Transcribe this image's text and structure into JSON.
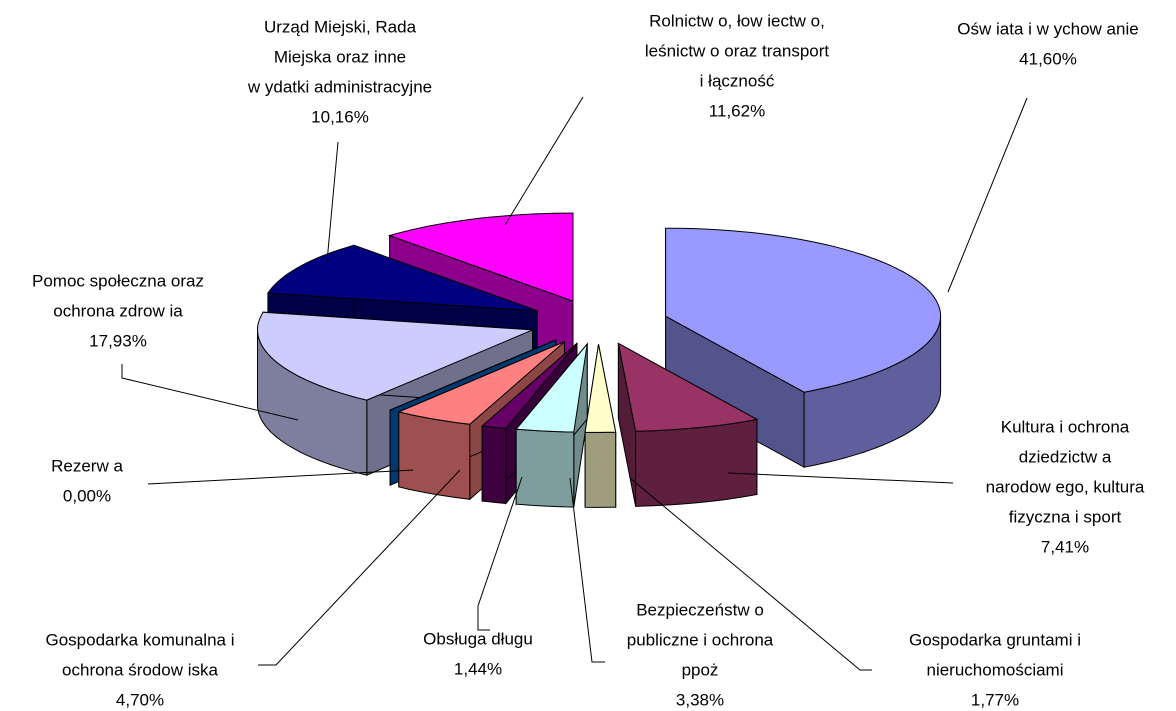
{
  "chart_data": {
    "type": "pie",
    "three_d": true,
    "exploded": true,
    "categories": [
      [
        "Ośw iata i w ychow anie"
      ],
      [
        "Kultura i ochrona",
        "dziedzictw a",
        "narodow ego, kultura",
        "fizyczna i sport"
      ],
      [
        "Gospodarka gruntami i",
        "nieruchomościami"
      ],
      [
        "Bezpieczeństw o",
        "publiczne i ochrona",
        "ppoż"
      ],
      [
        "Obsługa długu"
      ],
      [
        "Gospodarka komunalna i",
        "ochrona środow iska"
      ],
      [
        "Rezerw a"
      ],
      [
        "Pomoc społeczna oraz",
        "ochrona zdrow ia"
      ],
      [
        "Urząd Miejski, Rada",
        "Miejska oraz inne",
        "w ydatki administracyjne"
      ],
      [
        "Rolnictw o, łow iectw o,",
        "leśnictw o oraz transport",
        "i łączność"
      ]
    ],
    "values": [
      41.6,
      7.41,
      1.77,
      3.38,
      1.44,
      4.7,
      0.0,
      17.93,
      10.16,
      11.62
    ],
    "value_labels": [
      "41,60%",
      "7,41%",
      "1,77%",
      "3,38%",
      "1,44%",
      "4,70%",
      "0,00%",
      "17,93%",
      "10,16%",
      "11,62%"
    ],
    "colors": [
      "#9999ff",
      "#993366",
      "#ffffcc",
      "#ccffff",
      "#660066",
      "#ff8080",
      "#0066cc",
      "#ccccff",
      "#000080",
      "#ff00ff"
    ]
  }
}
